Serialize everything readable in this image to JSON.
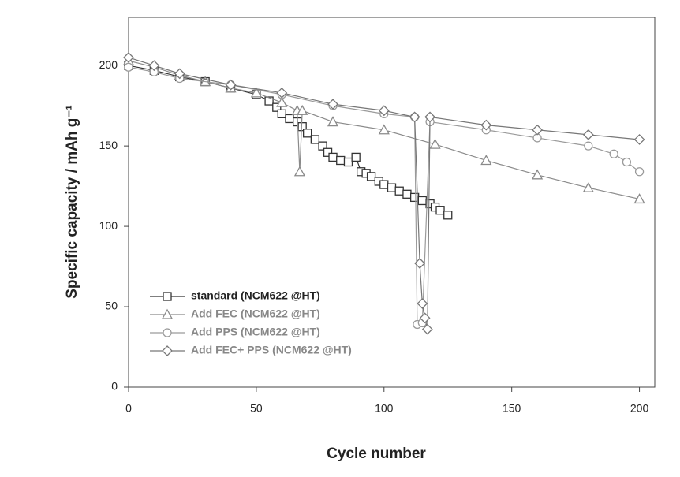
{
  "chart_data": {
    "type": "line",
    "x_label": "Cycle number",
    "y_label": "Specific capacity / mAh g⁻¹",
    "xlim": [
      0,
      206
    ],
    "ylim": [
      0,
      230
    ],
    "xticks": [
      0,
      50,
      100,
      150,
      200
    ],
    "yticks": [
      0,
      50,
      100,
      150,
      200
    ],
    "grid": false,
    "legend": "lower left",
    "series": [
      {
        "name": "standard (NCM622 @HT)",
        "color": "#333333",
        "marker": "square",
        "x": [
          0,
          10,
          20,
          30,
          40,
          50,
          55,
          58,
          60,
          63,
          66,
          68,
          70,
          73,
          76,
          78,
          80,
          83,
          86,
          89,
          91,
          93,
          95,
          98,
          100,
          103,
          106,
          109,
          112,
          115,
          118,
          120,
          122,
          125
        ],
        "values": [
          200,
          197,
          193,
          190,
          186,
          182,
          178,
          174,
          170,
          167,
          165,
          162,
          158,
          154,
          150,
          146,
          143,
          141,
          140,
          143,
          134,
          133,
          131,
          128,
          126,
          124,
          122,
          120,
          118,
          116,
          114,
          112,
          110,
          107
        ]
      },
      {
        "name": "Add FEC (NCM622 @HT)",
        "color": "#8a8a8a",
        "marker": "triangle",
        "x": [
          0,
          10,
          20,
          30,
          40,
          50,
          60,
          66,
          67,
          68,
          80,
          100,
          120,
          140,
          160,
          180,
          200
        ],
        "values": [
          203,
          199,
          194,
          190,
          186,
          183,
          177,
          172,
          134,
          172,
          165,
          160,
          151,
          141,
          132,
          124,
          117
        ]
      },
      {
        "name": "Add PPS (NCM622 @HT)",
        "color": "#9a9a9a",
        "marker": "circle",
        "x": [
          0,
          10,
          20,
          40,
          60,
          80,
          100,
          112,
          113,
          115,
          118,
          140,
          160,
          180,
          190,
          195,
          200
        ],
        "values": [
          199,
          196,
          192,
          188,
          182,
          175,
          170,
          168,
          39,
          40,
          165,
          160,
          155,
          150,
          145,
          140,
          134
        ]
      },
      {
        "name": "Add FEC+ PPS (NCM622 @HT)",
        "color": "#777777",
        "marker": "diamond",
        "x": [
          0,
          10,
          20,
          40,
          60,
          80,
          100,
          112,
          114,
          115,
          116,
          117,
          118,
          140,
          160,
          180,
          200
        ],
        "values": [
          205,
          200,
          195,
          188,
          183,
          176,
          172,
          168,
          77,
          52,
          43,
          36,
          168,
          163,
          160,
          157,
          154
        ]
      }
    ]
  }
}
